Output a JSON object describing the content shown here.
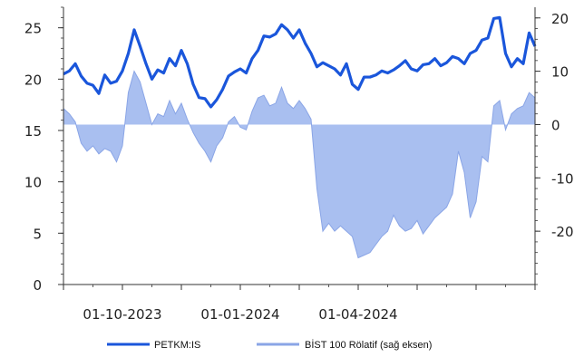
{
  "chart_data": {
    "type": "line",
    "title": "",
    "legend_position": "bottom",
    "grid": false,
    "colors": {
      "petkm_line": "#1a56db",
      "relative_fill": "#a9bff0",
      "relative_line": "#8aa5e6",
      "axis": "#333333"
    },
    "x_axis": {
      "tick_labels": [
        "01-10-2023",
        "01-01-2024",
        "01-04-2024"
      ],
      "tick_positions": [
        1,
        3,
        5
      ],
      "range": [
        0,
        8
      ]
    },
    "y_left": {
      "range": [
        0,
        27
      ],
      "ticks": [
        0,
        5,
        10,
        15,
        20,
        25
      ]
    },
    "y_right": {
      "range": [
        -30,
        22
      ],
      "ticks": [
        -20,
        -10,
        0,
        10,
        20
      ]
    },
    "series": [
      {
        "name": "PETKM:IS",
        "axis": "left",
        "x": [
          0.0,
          0.1,
          0.2,
          0.3,
          0.4,
          0.5,
          0.6,
          0.7,
          0.8,
          0.9,
          1.0,
          1.1,
          1.2,
          1.3,
          1.4,
          1.5,
          1.6,
          1.7,
          1.8,
          1.9,
          2.0,
          2.1,
          2.2,
          2.3,
          2.4,
          2.5,
          2.6,
          2.7,
          2.8,
          2.9,
          3.0,
          3.1,
          3.2,
          3.3,
          3.4,
          3.5,
          3.6,
          3.7,
          3.8,
          3.9,
          4.0,
          4.1,
          4.2,
          4.3,
          4.4,
          4.5,
          4.6,
          4.7,
          4.8,
          4.9,
          5.0,
          5.1,
          5.2,
          5.3,
          5.4,
          5.5,
          5.6,
          5.7,
          5.8,
          5.9,
          6.0,
          6.1,
          6.2,
          6.3,
          6.4,
          6.5,
          6.6,
          6.7,
          6.8,
          6.9,
          7.0,
          7.1,
          7.2,
          7.3,
          7.4,
          7.5,
          7.6,
          7.7,
          7.8,
          7.9,
          8.0
        ],
        "values": [
          20.5,
          20.8,
          21.5,
          20.3,
          19.6,
          19.4,
          18.6,
          20.4,
          19.6,
          19.8,
          20.8,
          22.5,
          24.8,
          23.2,
          21.5,
          20.0,
          20.9,
          20.6,
          22.0,
          21.3,
          22.8,
          21.5,
          19.5,
          18.2,
          18.1,
          17.3,
          18.0,
          19.0,
          20.3,
          20.7,
          21.0,
          20.6,
          22.0,
          22.8,
          24.2,
          24.1,
          24.4,
          25.3,
          24.8,
          24.0,
          24.8,
          23.5,
          22.5,
          21.2,
          21.6,
          21.3,
          21.0,
          20.4,
          21.5,
          19.5,
          19.0,
          20.2,
          20.2,
          20.4,
          20.8,
          20.6,
          20.9,
          21.3,
          21.8,
          21.0,
          20.8,
          21.4,
          21.5,
          22.0,
          21.3,
          21.6,
          22.2,
          22.0,
          21.5,
          22.5,
          22.8,
          23.8,
          24.0,
          25.9,
          26.0,
          22.5,
          21.2,
          22.0,
          21.5,
          24.5,
          23.2
        ],
        "color": "#1a56db"
      },
      {
        "name": "BİST 100 Rölatif (sağ eksen)",
        "axis": "right",
        "x": [
          0.0,
          0.1,
          0.2,
          0.3,
          0.4,
          0.5,
          0.6,
          0.7,
          0.8,
          0.9,
          1.0,
          1.1,
          1.2,
          1.3,
          1.4,
          1.5,
          1.6,
          1.7,
          1.8,
          1.9,
          2.0,
          2.1,
          2.2,
          2.3,
          2.4,
          2.5,
          2.6,
          2.7,
          2.8,
          2.9,
          3.0,
          3.1,
          3.2,
          3.3,
          3.4,
          3.5,
          3.6,
          3.7,
          3.8,
          3.9,
          4.0,
          4.1,
          4.2,
          4.3,
          4.4,
          4.5,
          4.6,
          4.7,
          4.8,
          4.9,
          5.0,
          5.1,
          5.2,
          5.3,
          5.4,
          5.5,
          5.6,
          5.7,
          5.8,
          5.9,
          6.0,
          6.1,
          6.2,
          6.3,
          6.4,
          6.5,
          6.6,
          6.7,
          6.8,
          6.9,
          7.0,
          7.1,
          7.2,
          7.3,
          7.4,
          7.5,
          7.6,
          7.7,
          7.8,
          7.9,
          8.0
        ],
        "values": [
          3.0,
          2.0,
          0.5,
          -3.5,
          -5.0,
          -4.0,
          -5.5,
          -4.5,
          -5.0,
          -7.0,
          -4.0,
          6.0,
          10.0,
          8.0,
          4.0,
          0.0,
          2.0,
          1.5,
          4.5,
          2.0,
          4.0,
          1.0,
          -1.5,
          -3.5,
          -5.0,
          -7.0,
          -4.0,
          -2.5,
          0.5,
          1.5,
          -0.5,
          -1.0,
          2.5,
          5.0,
          5.5,
          3.5,
          4.0,
          7.0,
          4.0,
          3.0,
          4.5,
          3.0,
          1.0,
          -12.0,
          -20.0,
          -18.5,
          -20.0,
          -19.0,
          -20.0,
          -21.0,
          -25.0,
          -24.5,
          -24.0,
          -22.5,
          -21.0,
          -20.0,
          -17.0,
          -19.0,
          -20.0,
          -19.5,
          -18.0,
          -20.5,
          -19.0,
          -17.5,
          -16.5,
          -15.5,
          -13.0,
          -5.0,
          -9.0,
          -17.5,
          -14.5,
          -6.0,
          -7.0,
          3.5,
          4.5,
          -1.0,
          2.0,
          3.0,
          3.5,
          6.0,
          5.0
        ],
        "color": "#8aa5e6"
      }
    ]
  }
}
